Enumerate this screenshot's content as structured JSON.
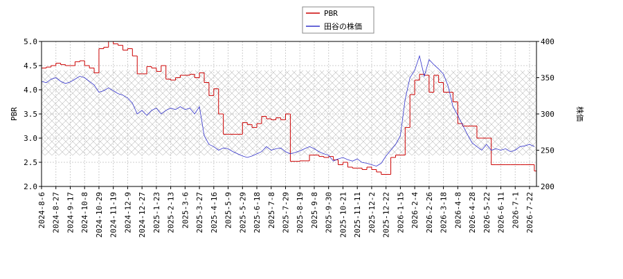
{
  "chart_data": {
    "type": "line",
    "ylabel": "PBR",
    "y2label": "株価",
    "categories": [
      "2024-8-6",
      null,
      null,
      "2024-8-27",
      null,
      null,
      "2024-9-17",
      null,
      null,
      "2024-10-8",
      null,
      null,
      "2024-10-29",
      null,
      null,
      "2024-11-19",
      null,
      null,
      "2024-12-9",
      null,
      null,
      "2024-12-27",
      null,
      null,
      "2025-1-23",
      null,
      null,
      "2025-2-13",
      null,
      null,
      "2025-3-6",
      null,
      null,
      "2025-3-27",
      null,
      null,
      "2025-4-16",
      null,
      null,
      "2025-5-9",
      null,
      null,
      "2025-5-29",
      null,
      null,
      "2025-6-18",
      null,
      null,
      "2025-7-8",
      null,
      null,
      "2025-7-29",
      null,
      null,
      "2025-8-19",
      null,
      null,
      "2025-9-8",
      null,
      null,
      "2025-9-30",
      null,
      null,
      "2025-10-21",
      null,
      null,
      "2025-11-11",
      null,
      null,
      "2025-12-2",
      null,
      null,
      "2025-12-22",
      null,
      null,
      "2026-1-15",
      null,
      null,
      "2026-2-4",
      null,
      null,
      "2026-2-26",
      null,
      null,
      "2026-3-18",
      null,
      null,
      "2026-4-8",
      null,
      null,
      "2026-4-28",
      null,
      null,
      "2026-5-22",
      null,
      null,
      "2026-6-11",
      null,
      null,
      "2026-7-1",
      null,
      null,
      "2026-7-22",
      null
    ],
    "series": [
      {
        "name": "PBR",
        "color": "#cc0000",
        "step": true,
        "values": [
          4.45,
          4.47,
          4.5,
          4.55,
          4.52,
          4.5,
          4.5,
          4.58,
          4.6,
          4.5,
          4.45,
          4.35,
          4.85,
          4.88,
          5.0,
          4.95,
          4.92,
          4.82,
          4.85,
          4.7,
          4.33,
          4.33,
          4.48,
          4.45,
          4.38,
          4.5,
          4.22,
          4.2,
          4.25,
          4.3,
          4.3,
          4.32,
          4.25,
          4.35,
          4.15,
          3.88,
          4.02,
          3.5,
          3.08,
          3.08,
          3.08,
          3.08,
          3.32,
          3.28,
          3.22,
          3.3,
          3.45,
          3.4,
          3.38,
          3.42,
          3.38,
          3.5,
          2.52,
          2.52,
          2.53,
          2.53,
          2.65,
          2.65,
          2.62,
          2.6,
          2.62,
          2.55,
          2.45,
          2.5,
          2.4,
          2.38,
          2.38,
          2.35,
          2.4,
          2.35,
          2.3,
          2.25,
          2.25,
          2.6,
          2.65,
          2.65,
          3.22,
          3.9,
          4.2,
          4.32,
          4.3,
          3.95,
          4.3,
          4.15,
          3.95,
          3.95,
          3.75,
          3.3,
          3.25,
          3.25,
          3.25,
          3.0,
          3.0,
          3.0,
          2.45,
          2.45,
          2.45,
          2.45,
          2.45,
          2.45,
          2.45,
          2.45,
          2.45,
          2.32
        ]
      },
      {
        "name": "田谷の株価",
        "color": "#3333cc",
        "axis": "y2",
        "values": [
          345,
          343,
          348,
          350,
          345,
          342,
          344,
          348,
          352,
          350,
          345,
          340,
          330,
          332,
          336,
          332,
          328,
          326,
          322,
          315,
          300,
          305,
          298,
          305,
          308,
          300,
          305,
          308,
          306,
          310,
          306,
          308,
          300,
          310,
          270,
          258,
          255,
          250,
          253,
          252,
          248,
          245,
          242,
          240,
          242,
          245,
          248,
          255,
          250,
          252,
          253,
          248,
          245,
          247,
          249,
          252,
          255,
          252,
          248,
          245,
          243,
          235,
          238,
          240,
          237,
          235,
          238,
          233,
          232,
          230,
          228,
          232,
          242,
          250,
          258,
          270,
          320,
          350,
          360,
          380,
          352,
          375,
          368,
          362,
          355,
          338,
          310,
          298,
          285,
          272,
          260,
          255,
          250,
          258,
          250,
          252,
          250,
          252,
          248,
          250,
          255,
          256,
          258,
          255
        ]
      }
    ],
    "ylim": [
      2,
      5
    ],
    "yticks": [
      {
        "value": 2,
        "label": "2.0"
      },
      {
        "value": 2.5,
        "label": "2.5"
      },
      {
        "value": 3,
        "label": "3.0"
      },
      {
        "value": 3.5,
        "label": "3.5"
      },
      {
        "value": 4,
        "label": "4.0"
      },
      {
        "value": 4.5,
        "label": "4.5"
      },
      {
        "value": 5,
        "label": "5.0"
      }
    ],
    "y2lim": [
      200,
      400
    ],
    "y2ticks": [
      200,
      250,
      300,
      350,
      400
    ],
    "grid": true
  }
}
